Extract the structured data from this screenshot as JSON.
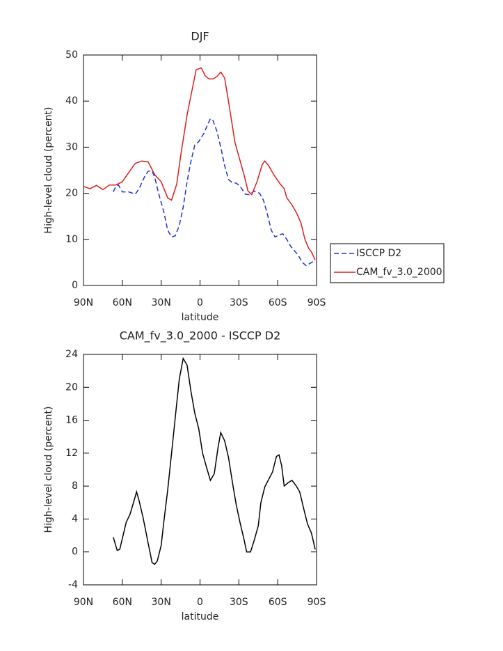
{
  "chart_data": [
    {
      "type": "line",
      "title": "DJF",
      "xlabel": "latitude",
      "ylabel": "High-level cloud (percent)",
      "xlim": [
        90,
        -90
      ],
      "ylim": [
        0,
        50
      ],
      "xticks": [
        {
          "value": 90,
          "label": "90N"
        },
        {
          "value": 60,
          "label": "60N"
        },
        {
          "value": 30,
          "label": "30N"
        },
        0,
        {
          "value": -30,
          "label": "30S"
        },
        {
          "value": -60,
          "label": "60S"
        },
        {
          "value": -90,
          "label": "90S"
        }
      ],
      "yticks": [
        0,
        10,
        20,
        30,
        40,
        50
      ],
      "legend": "right",
      "series": [
        {
          "name": "ISCCP D2",
          "color": "#1f2fd6",
          "linestyle": "dashed",
          "x": [
            67,
            65,
            63,
            60,
            55,
            50,
            47,
            43,
            40,
            37,
            35,
            32,
            28,
            25,
            22,
            19,
            16,
            13,
            10,
            7,
            4,
            1,
            -3,
            -6,
            -8,
            -10,
            -13,
            -16,
            -19,
            -22,
            -25,
            -28,
            -31,
            -35,
            -38,
            -42,
            -46,
            -49,
            -52,
            -55,
            -58,
            -61,
            -64,
            -67,
            -70,
            -73,
            -76,
            -79,
            -82,
            -85,
            -88
          ],
          "values": [
            20.3,
            21.5,
            21.8,
            20.3,
            20.3,
            19.8,
            21,
            23.5,
            24.8,
            24.8,
            23.5,
            20,
            16,
            12,
            10.5,
            10.8,
            13,
            17,
            22.5,
            27,
            30.5,
            31.2,
            33,
            35,
            36.2,
            35.8,
            33.5,
            30,
            26,
            23,
            22.3,
            22.2,
            21.5,
            19.8,
            19.7,
            20.5,
            20,
            18.5,
            15.5,
            12,
            10.5,
            11,
            11.2,
            10,
            8.5,
            7.5,
            6.5,
            5,
            4.3,
            4.8,
            5.3
          ]
        },
        {
          "name": "CAM_fv_3.0_2000",
          "color": "#e01b1b",
          "linestyle": "solid",
          "x": [
            90,
            85,
            80,
            75,
            70,
            65,
            60,
            55,
            50,
            45,
            40,
            35,
            30,
            25,
            22,
            18,
            15,
            10,
            5,
            3,
            -1,
            -4,
            -7,
            -10,
            -13,
            -16,
            -19,
            -22,
            -27,
            -31,
            -34,
            -37,
            -40,
            -44,
            -48,
            -50,
            -53,
            -57,
            -62,
            -65,
            -67,
            -71,
            -75,
            -78,
            -81,
            -84,
            -86,
            -89
          ],
          "values": [
            21.5,
            21,
            21.7,
            20.8,
            21.8,
            21.8,
            22.5,
            24.5,
            26.5,
            27,
            26.8,
            24,
            22.5,
            19,
            18.5,
            22,
            28,
            37,
            44,
            46.8,
            47.2,
            45.5,
            44.8,
            44.8,
            45.3,
            46.3,
            45,
            40,
            31,
            27,
            24,
            20.5,
            19.7,
            22.5,
            26.2,
            27,
            26,
            24,
            22,
            21,
            19,
            17.5,
            15.5,
            13.5,
            10,
            8,
            7.3,
            5.5
          ]
        }
      ]
    },
    {
      "type": "line",
      "title": "CAM_fv_3.0_2000 - ISCCP D2",
      "xlabel": "latitude",
      "ylabel": "High-level cloud (percent)",
      "xlim": [
        90,
        -90
      ],
      "ylim": [
        -4,
        24
      ],
      "xticks": [
        {
          "value": 90,
          "label": "90N"
        },
        {
          "value": 60,
          "label": "60N"
        },
        {
          "value": 30,
          "label": "30N"
        },
        0,
        {
          "value": -30,
          "label": "30S"
        },
        {
          "value": -60,
          "label": "60S"
        },
        {
          "value": -90,
          "label": "90S"
        }
      ],
      "yticks": [
        -4,
        0,
        4,
        8,
        12,
        16,
        20,
        24
      ],
      "color": "#000000",
      "x": [
        67,
        64,
        62,
        57,
        54,
        51,
        49,
        47,
        44,
        40,
        37,
        35,
        33,
        30,
        28,
        25,
        22,
        19,
        16,
        13,
        10,
        7,
        4,
        1,
        -2,
        -5,
        -8,
        -11,
        -14,
        -16,
        -19,
        -22,
        -25,
        -28,
        -31,
        -34,
        -36,
        -39,
        -42,
        -45,
        -47,
        -50,
        -53,
        -56,
        -59,
        -61,
        -63,
        -65,
        -68,
        -71,
        -74,
        -77,
        -80,
        -83,
        -86,
        -89
      ],
      "values": [
        1.8,
        0.2,
        0.3,
        3.6,
        4.6,
        6.2,
        7.3,
        6.2,
        4.2,
        1,
        -1.3,
        -1.5,
        -1.1,
        0.8,
        3.6,
        7.5,
        12,
        16.5,
        21,
        23.5,
        22.7,
        19.5,
        16.8,
        15,
        12,
        10.3,
        8.7,
        9.5,
        12.8,
        14.5,
        13.5,
        11.5,
        8.5,
        5.7,
        3.5,
        1.5,
        0,
        0,
        1.5,
        3.2,
        6,
        7.9,
        8.8,
        9.7,
        11.6,
        11.8,
        10.5,
        8,
        8.4,
        8.7,
        8.1,
        7.3,
        5.3,
        3.4,
        2.3,
        0.3
      ]
    }
  ]
}
